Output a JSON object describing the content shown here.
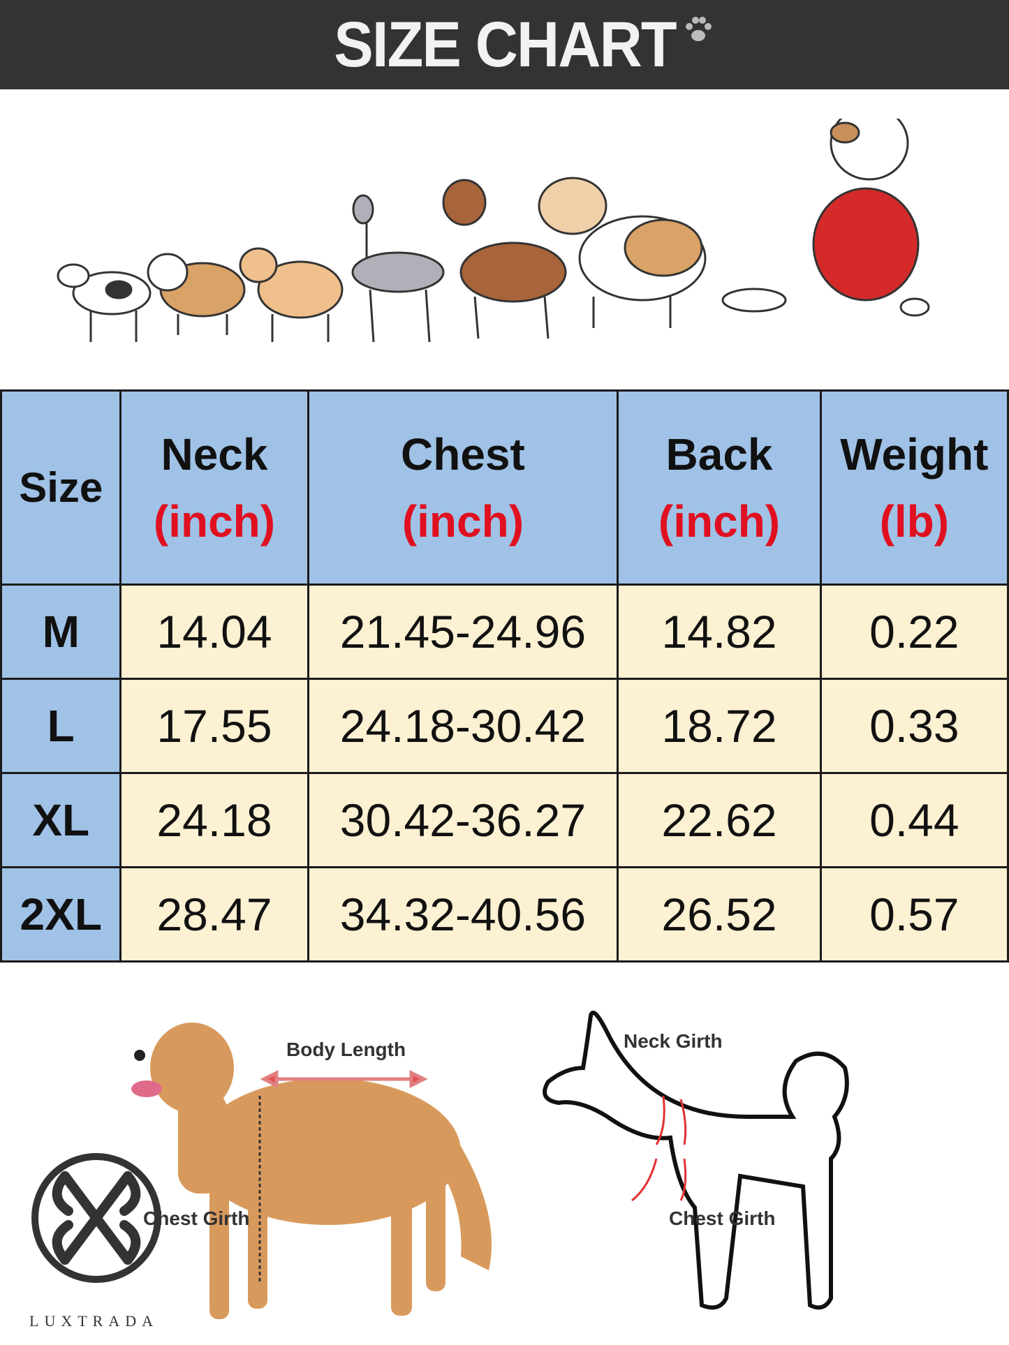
{
  "header": {
    "title": "SIZE CHART",
    "icon": "paw-print-icon"
  },
  "table": {
    "columns": [
      {
        "label": "Size",
        "unit": ""
      },
      {
        "label": "Neck",
        "unit": "(inch)"
      },
      {
        "label": "Chest",
        "unit": "(inch)"
      },
      {
        "label": "Back",
        "unit": "(inch)"
      },
      {
        "label": "Weight",
        "unit": "(lb)"
      }
    ],
    "rows": [
      {
        "size": "M",
        "neck": "14.04",
        "chest": "21.45-24.96",
        "back": "14.82",
        "weight": "0.22"
      },
      {
        "size": "L",
        "neck": "17.55",
        "chest": "24.18-30.42",
        "back": "18.72",
        "weight": "0.33"
      },
      {
        "size": "XL",
        "neck": "24.18",
        "chest": "30.42-36.27",
        "back": "22.62",
        "weight": "0.44"
      },
      {
        "size": "2XL",
        "neck": "28.47",
        "chest": "34.32-40.56",
        "back": "26.52",
        "weight": "0.57"
      }
    ],
    "colors": {
      "header_bg": "#9fc2e6",
      "cell_bg": "#fcf1d2",
      "unit_text": "#e01020"
    }
  },
  "diagram": {
    "body_length": "Body Length",
    "chest_girth_photo": "Chest Girth",
    "neck_girth": "Neck Girth",
    "chest_girth_outline": "Chest Girth"
  },
  "brand": {
    "name": "LUXTRADA"
  }
}
